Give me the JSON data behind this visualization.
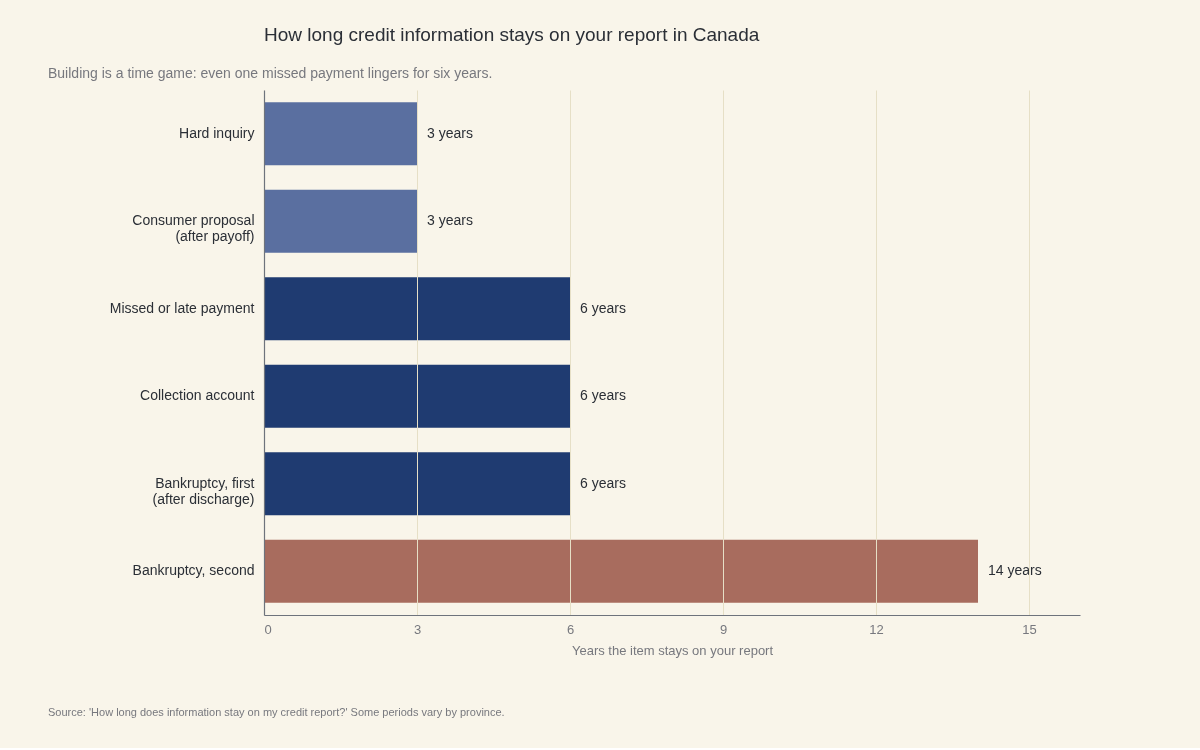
{
  "chart_data": {
    "type": "bar",
    "orientation": "horizontal",
    "title": "How long credit information stays on your report in Canada",
    "subtitle": "Building is a time game: even one missed payment lingers for six years.",
    "xlabel": "Years the item stays on your report",
    "categories": [
      "Hard inquiry",
      "Consumer proposal\n(after payoff)",
      "Missed or late payment",
      "Collection account",
      "Bankruptcy, first\n(after discharge)",
      "Bankruptcy, second"
    ],
    "values": [
      3,
      3,
      6,
      6,
      6,
      14
    ],
    "colors": [
      "#5a6fa0",
      "#5a6fa0",
      "#1f3b71",
      "#1f3b71",
      "#1f3b71",
      "#a86c5e"
    ],
    "value_labels": [
      "3 years",
      "3 years",
      "6 years",
      "6 years",
      "6 years",
      "14 years"
    ],
    "xlim": [
      0,
      16
    ],
    "xticks": [
      0,
      3,
      6,
      9,
      12,
      15
    ],
    "grid": "x",
    "annotations": [
      "Source: 'How long does information stay on my credit report?' Some periods vary by province."
    ]
  }
}
